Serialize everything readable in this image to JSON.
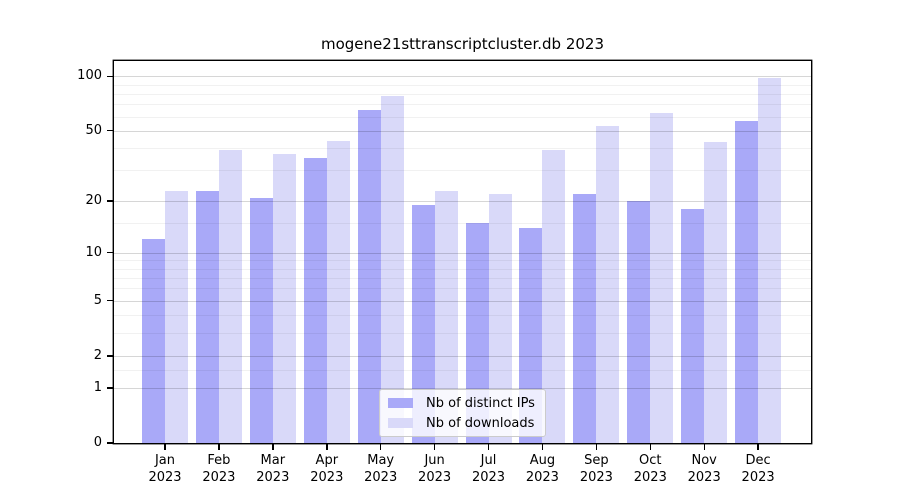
{
  "chart_data": {
    "type": "bar",
    "title": "mogene21sttranscriptcluster.db 2023",
    "x_months": [
      "Jan",
      "Feb",
      "Mar",
      "Apr",
      "May",
      "Jun",
      "Jul",
      "Aug",
      "Sep",
      "Oct",
      "Nov",
      "Dec"
    ],
    "x_year": "2023",
    "series": [
      {
        "name": "Nb of distinct IPs",
        "color": "#a9a9f8",
        "values": [
          12,
          23,
          21,
          35,
          65,
          19,
          15,
          14,
          22,
          20,
          18,
          57
        ]
      },
      {
        "name": "Nb of downloads",
        "color": "#d9d9f9",
        "values": [
          23,
          39,
          37,
          44,
          78,
          23,
          22,
          39,
          53,
          63,
          43,
          98
        ]
      }
    ],
    "xlabel": "",
    "ylabel": "",
    "yscale": "log1p",
    "ylim": [
      0,
      122
    ],
    "y_ticks": [
      0,
      1,
      2,
      5,
      10,
      20,
      50,
      100
    ],
    "y_minor_gridlines": [
      1.5,
      3,
      4,
      6,
      7,
      8,
      9,
      15,
      30,
      40,
      60,
      70,
      80,
      90
    ],
    "grid": true,
    "legend_position": "lower center"
  }
}
